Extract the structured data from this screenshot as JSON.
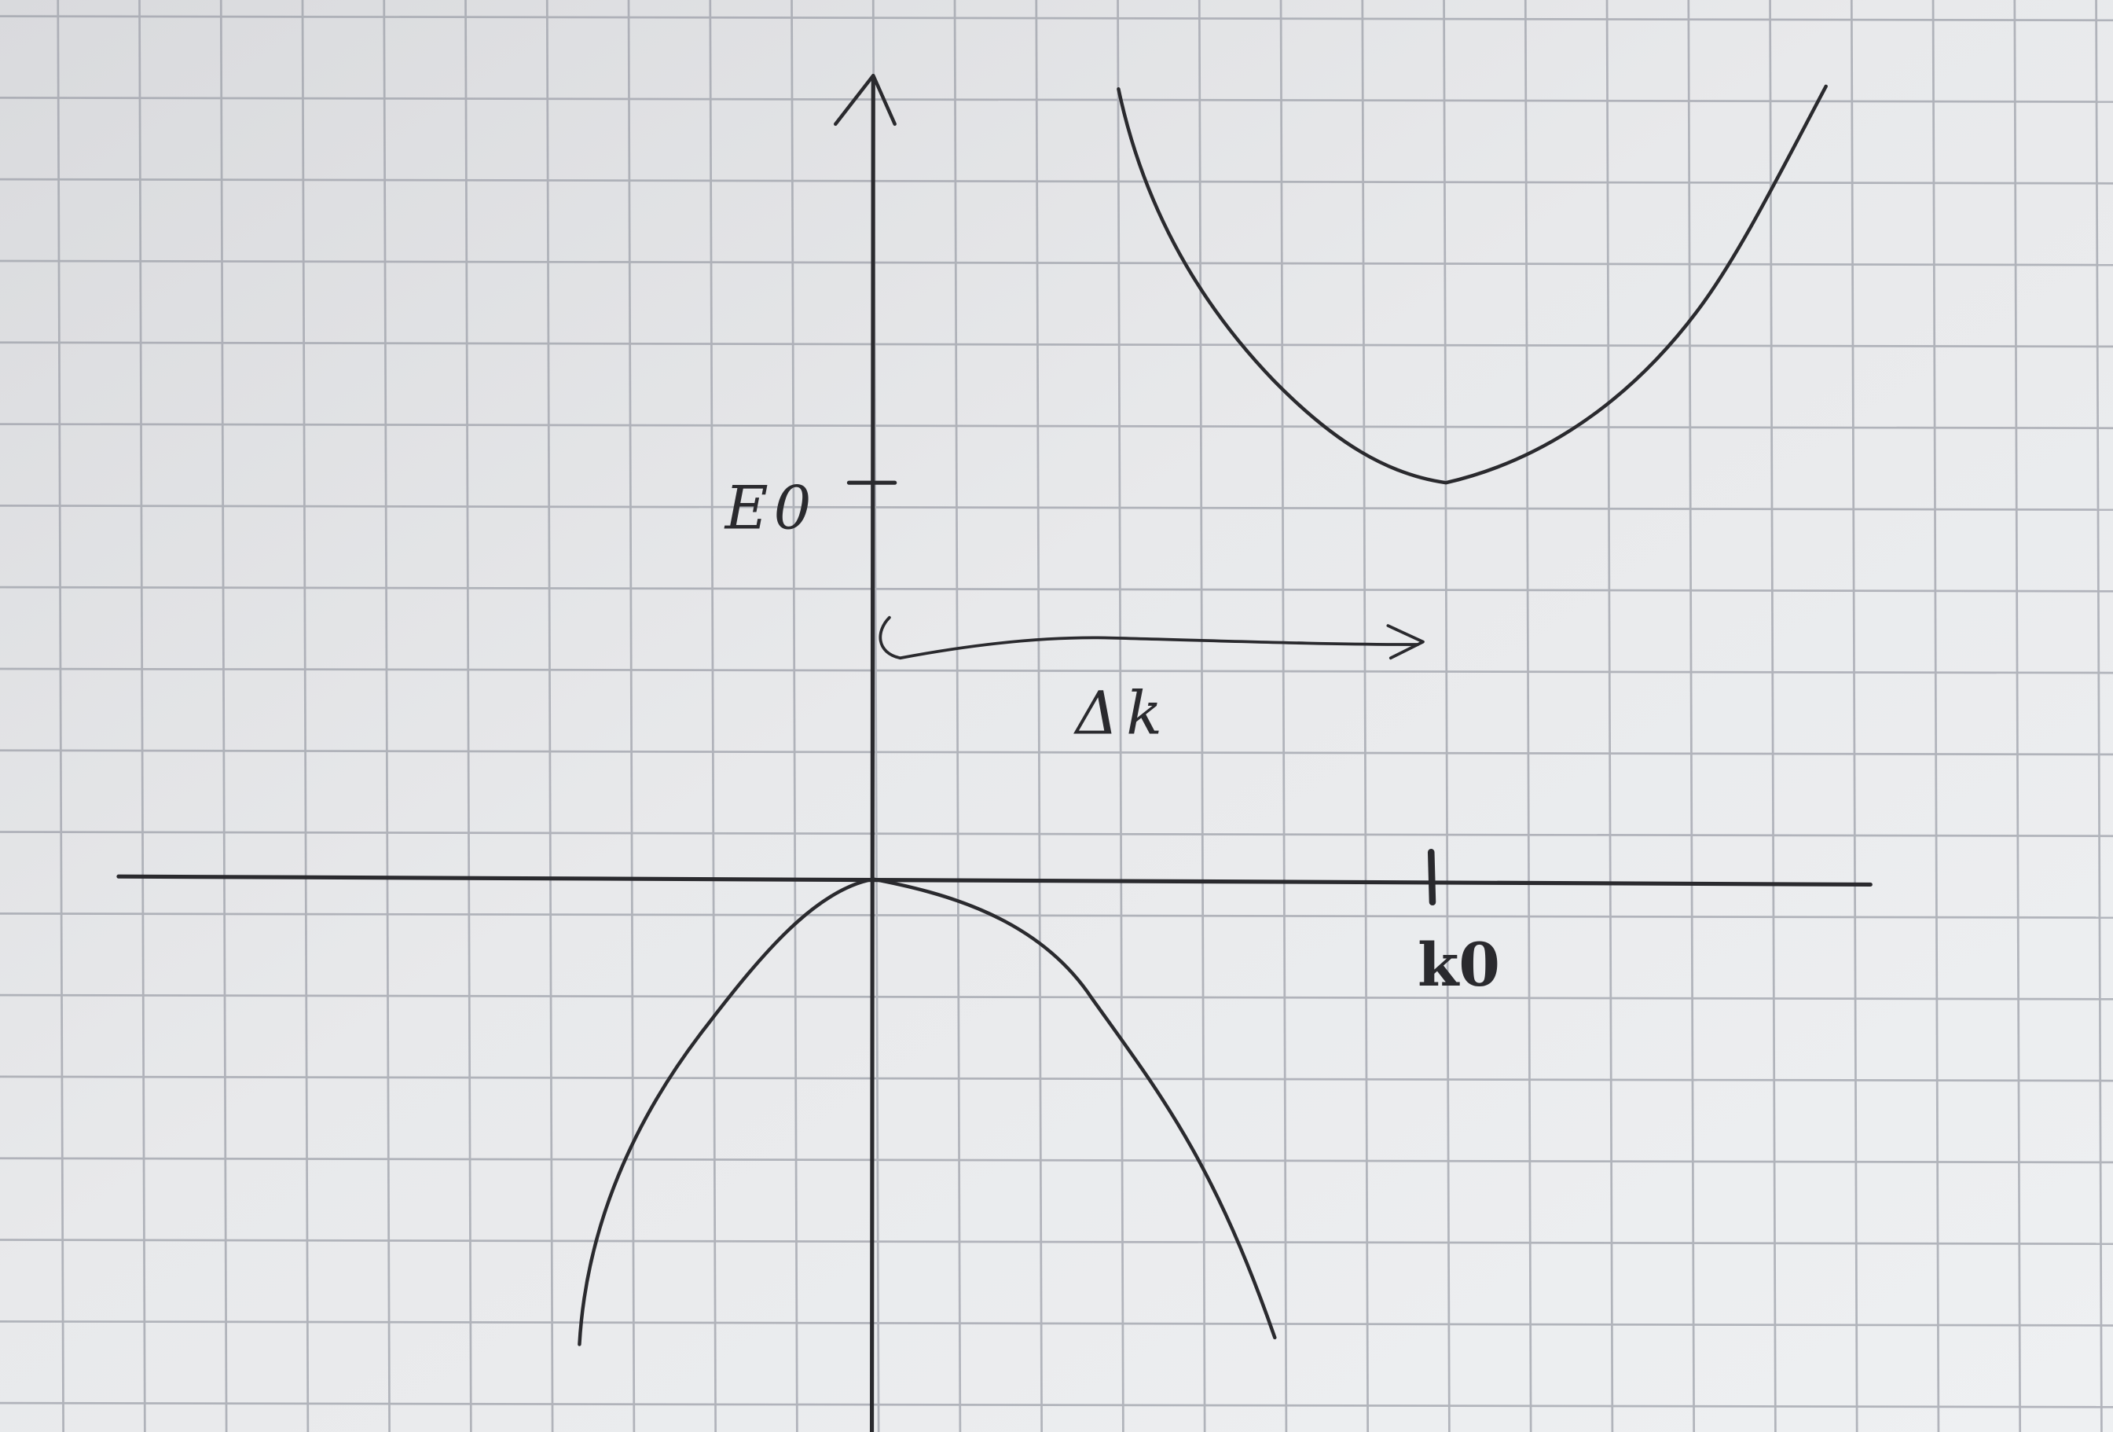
{
  "diagram": {
    "axis_labels": {
      "energy_tick": "E0",
      "momentum_tick": "k0",
      "offset": "Δk"
    },
    "colors": {
      "paper": "#e6e7e9",
      "grid": "#9ea1aa",
      "ink": "#2a2a2e"
    },
    "curves": [
      {
        "name": "conduction-band",
        "shape": "upward parabola",
        "minimum_at": [
          "k0",
          "E0"
        ]
      },
      {
        "name": "valence-band",
        "shape": "downward parabola",
        "maximum_at": [
          "0",
          "0"
        ]
      }
    ],
    "arrow": {
      "name": "momentum-offset-arrow",
      "from": "0",
      "to": "k0"
    }
  }
}
